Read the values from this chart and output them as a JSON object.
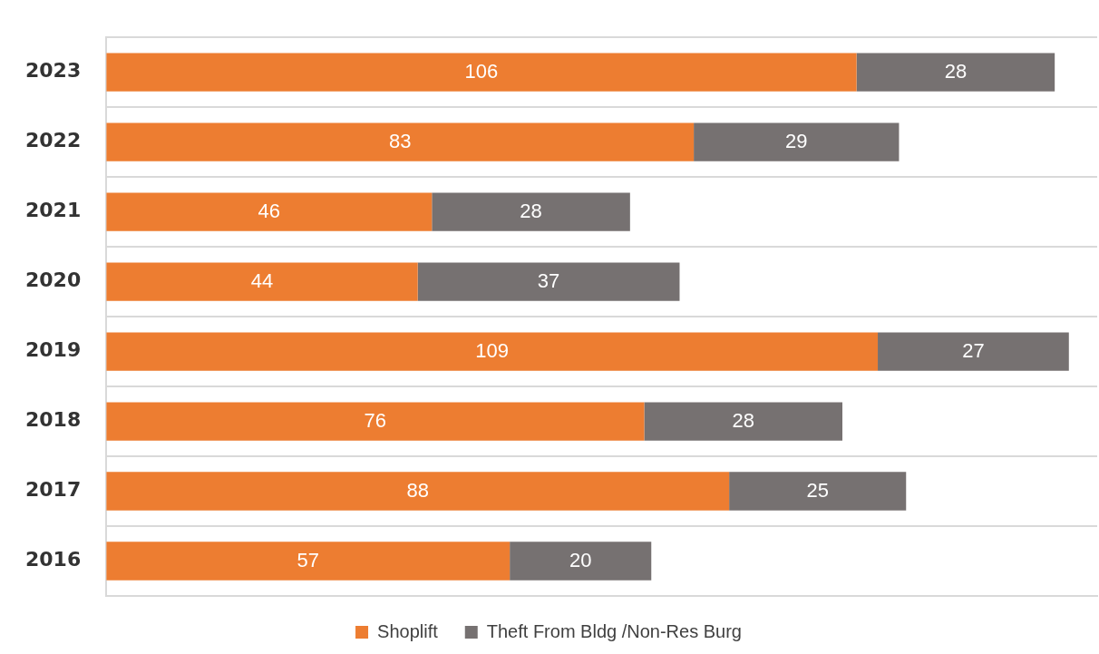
{
  "chart_data": {
    "type": "bar",
    "orientation": "horizontal",
    "stacked": true,
    "data_labels": true,
    "grid": "y",
    "legend": "bottom",
    "categories": [
      "2023",
      "2022",
      "2021",
      "2020",
      "2019",
      "2018",
      "2017",
      "2016"
    ],
    "series": [
      {
        "name": "Shoplift",
        "color": "#ed7d31",
        "values": [
          106,
          83,
          46,
          44,
          109,
          76,
          88,
          57
        ]
      },
      {
        "name": "Theft From Bldg /Non-Res Burg",
        "color": "#767171",
        "values": [
          28,
          29,
          28,
          37,
          27,
          28,
          25,
          20
        ]
      }
    ]
  }
}
